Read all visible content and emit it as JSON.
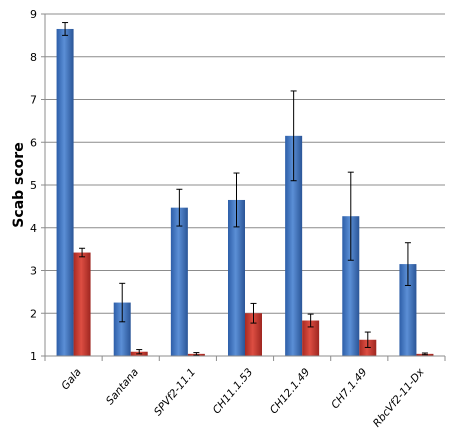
{
  "chart_data": {
    "type": "bar",
    "title": "",
    "xlabel": "",
    "ylabel": "Scab score",
    "ylim": [
      1,
      9
    ],
    "yticks": [
      1,
      2,
      3,
      4,
      5,
      6,
      7,
      8,
      9
    ],
    "grid": true,
    "legend": "none",
    "categories": [
      "Gala",
      "Santana",
      "SPVf2-11.1",
      "CH11.1.53",
      "CH12.1.49",
      "CH7.1.49",
      "RbcVf2-11-Dx"
    ],
    "series": [
      {
        "color": "#3b6fba",
        "values": [
          8.65,
          2.25,
          4.47,
          4.65,
          6.15,
          4.27,
          3.15
        ],
        "errors": [
          0.15,
          0.45,
          0.43,
          0.63,
          1.05,
          1.03,
          0.5
        ]
      },
      {
        "color": "#c0392b",
        "values": [
          3.42,
          1.1,
          1.05,
          2.0,
          1.83,
          1.38,
          1.05
        ],
        "errors": [
          0.1,
          0.05,
          0.03,
          0.23,
          0.15,
          0.18,
          0.02
        ]
      }
    ]
  }
}
